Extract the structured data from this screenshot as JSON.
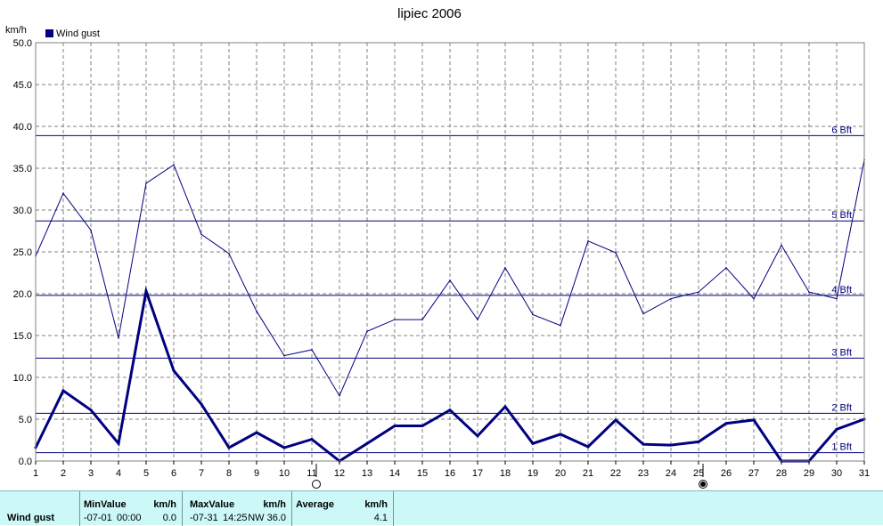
{
  "chart_data": {
    "type": "line",
    "title": "lipiec 2006",
    "ylabel": "km/h",
    "ylim": [
      0,
      50
    ],
    "yticks": [
      "0.0",
      "5.0",
      "10.0",
      "15.0",
      "20.0",
      "25.0",
      "30.0",
      "35.0",
      "40.0",
      "45.0",
      "50.0"
    ],
    "x": [
      1,
      2,
      3,
      4,
      5,
      6,
      7,
      8,
      9,
      10,
      11,
      12,
      13,
      14,
      15,
      16,
      17,
      18,
      19,
      20,
      21,
      22,
      23,
      24,
      25,
      26,
      27,
      28,
      29,
      30,
      31
    ],
    "xticks": [
      "1",
      "2",
      "3",
      "4",
      "5",
      "6",
      "7",
      "8",
      "9",
      "10",
      "11",
      "12",
      "13",
      "14",
      "15",
      "16",
      "17",
      "18",
      "19",
      "20",
      "21",
      "22",
      "23",
      "24",
      "25",
      "26",
      "27",
      "28",
      "29",
      "30",
      "31"
    ],
    "legend": [
      "Wind gust"
    ],
    "grid": true,
    "series": [
      {
        "name": "Wind gust",
        "role": "daily-maximum",
        "values": [
          24.5,
          32.0,
          27.6,
          14.7,
          33.2,
          35.4,
          27.1,
          24.8,
          17.9,
          12.6,
          13.3,
          7.8,
          15.5,
          16.9,
          16.9,
          21.6,
          16.9,
          23.1,
          17.5,
          16.2,
          26.3,
          24.9,
          17.6,
          19.4,
          20.2,
          23.1,
          19.4,
          25.8,
          20.2,
          19.4,
          36.0
        ],
        "color": "#000080"
      },
      {
        "name": "Wind gust",
        "role": "daily-average",
        "values": [
          1.6,
          8.4,
          6.1,
          2.1,
          20.3,
          10.8,
          6.8,
          1.6,
          3.4,
          1.6,
          2.6,
          0.0,
          2.1,
          4.2,
          4.2,
          6.1,
          3.0,
          6.5,
          2.1,
          3.2,
          1.7,
          4.9,
          2.0,
          1.9,
          2.3,
          4.5,
          4.9,
          0.0,
          0.0,
          3.8,
          5.0
        ],
        "color": "#000080"
      }
    ],
    "reference_lines": [
      {
        "label": "1 Bft",
        "value": 1.0
      },
      {
        "label": "2 Bft",
        "value": 5.7
      },
      {
        "label": "3 Bft",
        "value": 12.3
      },
      {
        "label": "4 Bft",
        "value": 19.8
      },
      {
        "label": "5 Bft",
        "value": 28.7
      },
      {
        "label": "6 Bft",
        "value": 38.9
      }
    ],
    "moon_phases": [
      {
        "day": 11,
        "phase": "new"
      },
      {
        "day": 25,
        "phase": "full"
      }
    ]
  },
  "stats": {
    "row_label": "Wind gust",
    "min": {
      "label": "MinValue",
      "unit": "km/h",
      "date": "-07-01",
      "time": "00:00",
      "value": "0.0"
    },
    "max": {
      "label": "MaxValue",
      "unit": "km/h",
      "date": "-07-31",
      "time": "14:25",
      "direction_value": "NW 36.0"
    },
    "avg": {
      "label": "Average",
      "unit": "km/h",
      "value": "4.1"
    }
  },
  "colors": {
    "series": "#000080",
    "grid": "#808080",
    "stats_background": "#ccf8f8"
  }
}
